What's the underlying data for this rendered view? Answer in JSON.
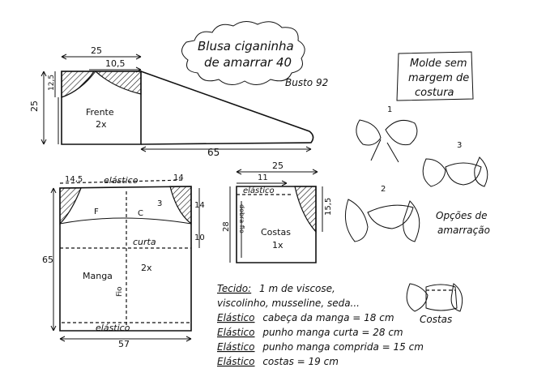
{
  "title": {
    "line1": "Blusa ciganinha",
    "line2": "de amarrar 40",
    "bust": "Busto 92"
  },
  "note_box": {
    "line1": "Molde sem",
    "line2": "margem de",
    "line3": "costura"
  },
  "frente": {
    "label": "Frente",
    "qty": "2x",
    "dim_top": "25",
    "dim_neck": "10,5",
    "dim_left_small": "12,5",
    "dim_left": "25",
    "dim_tail": "65"
  },
  "manga": {
    "label": "Manga",
    "qty": "2x",
    "fio": "Fio",
    "elastico_top": "elástico",
    "elastico_bottom": "elástico",
    "curta": "curta",
    "mark_f": "F",
    "mark_c": "C",
    "dim_top_left": "14,5",
    "dim_top_right": "14",
    "dim_right_top": "14",
    "dim_right_mid": "10",
    "dim_left": "65",
    "dim_bottom": "57",
    "mark_3": "3"
  },
  "costas": {
    "label": "Costas",
    "qty": "1x",
    "elastico": "elástico",
    "fio": "dobra fio",
    "dim_top": "25",
    "dim_top_inner": "11",
    "dim_right": "15,5",
    "dim_left": "28"
  },
  "options": {
    "num1": "1",
    "num2": "2",
    "num3": "3",
    "caption1": "Opções de",
    "caption2": "amarração",
    "costas_caption": "Costas"
  },
  "materials": [
    {
      "key": "Tecido:",
      "value": "1 m de viscose,"
    },
    {
      "key": "",
      "value": "viscolinho, musseline, seda..."
    },
    {
      "key": "Elástico",
      "value": "cabeça da manga = 18 cm"
    },
    {
      "key": "Elástico",
      "value": "punho manga curta = 28 cm"
    },
    {
      "key": "Elástico",
      "value": "punho manga comprida = 15 cm"
    },
    {
      "key": "Elástico",
      "value": "costas = 19 cm"
    }
  ]
}
